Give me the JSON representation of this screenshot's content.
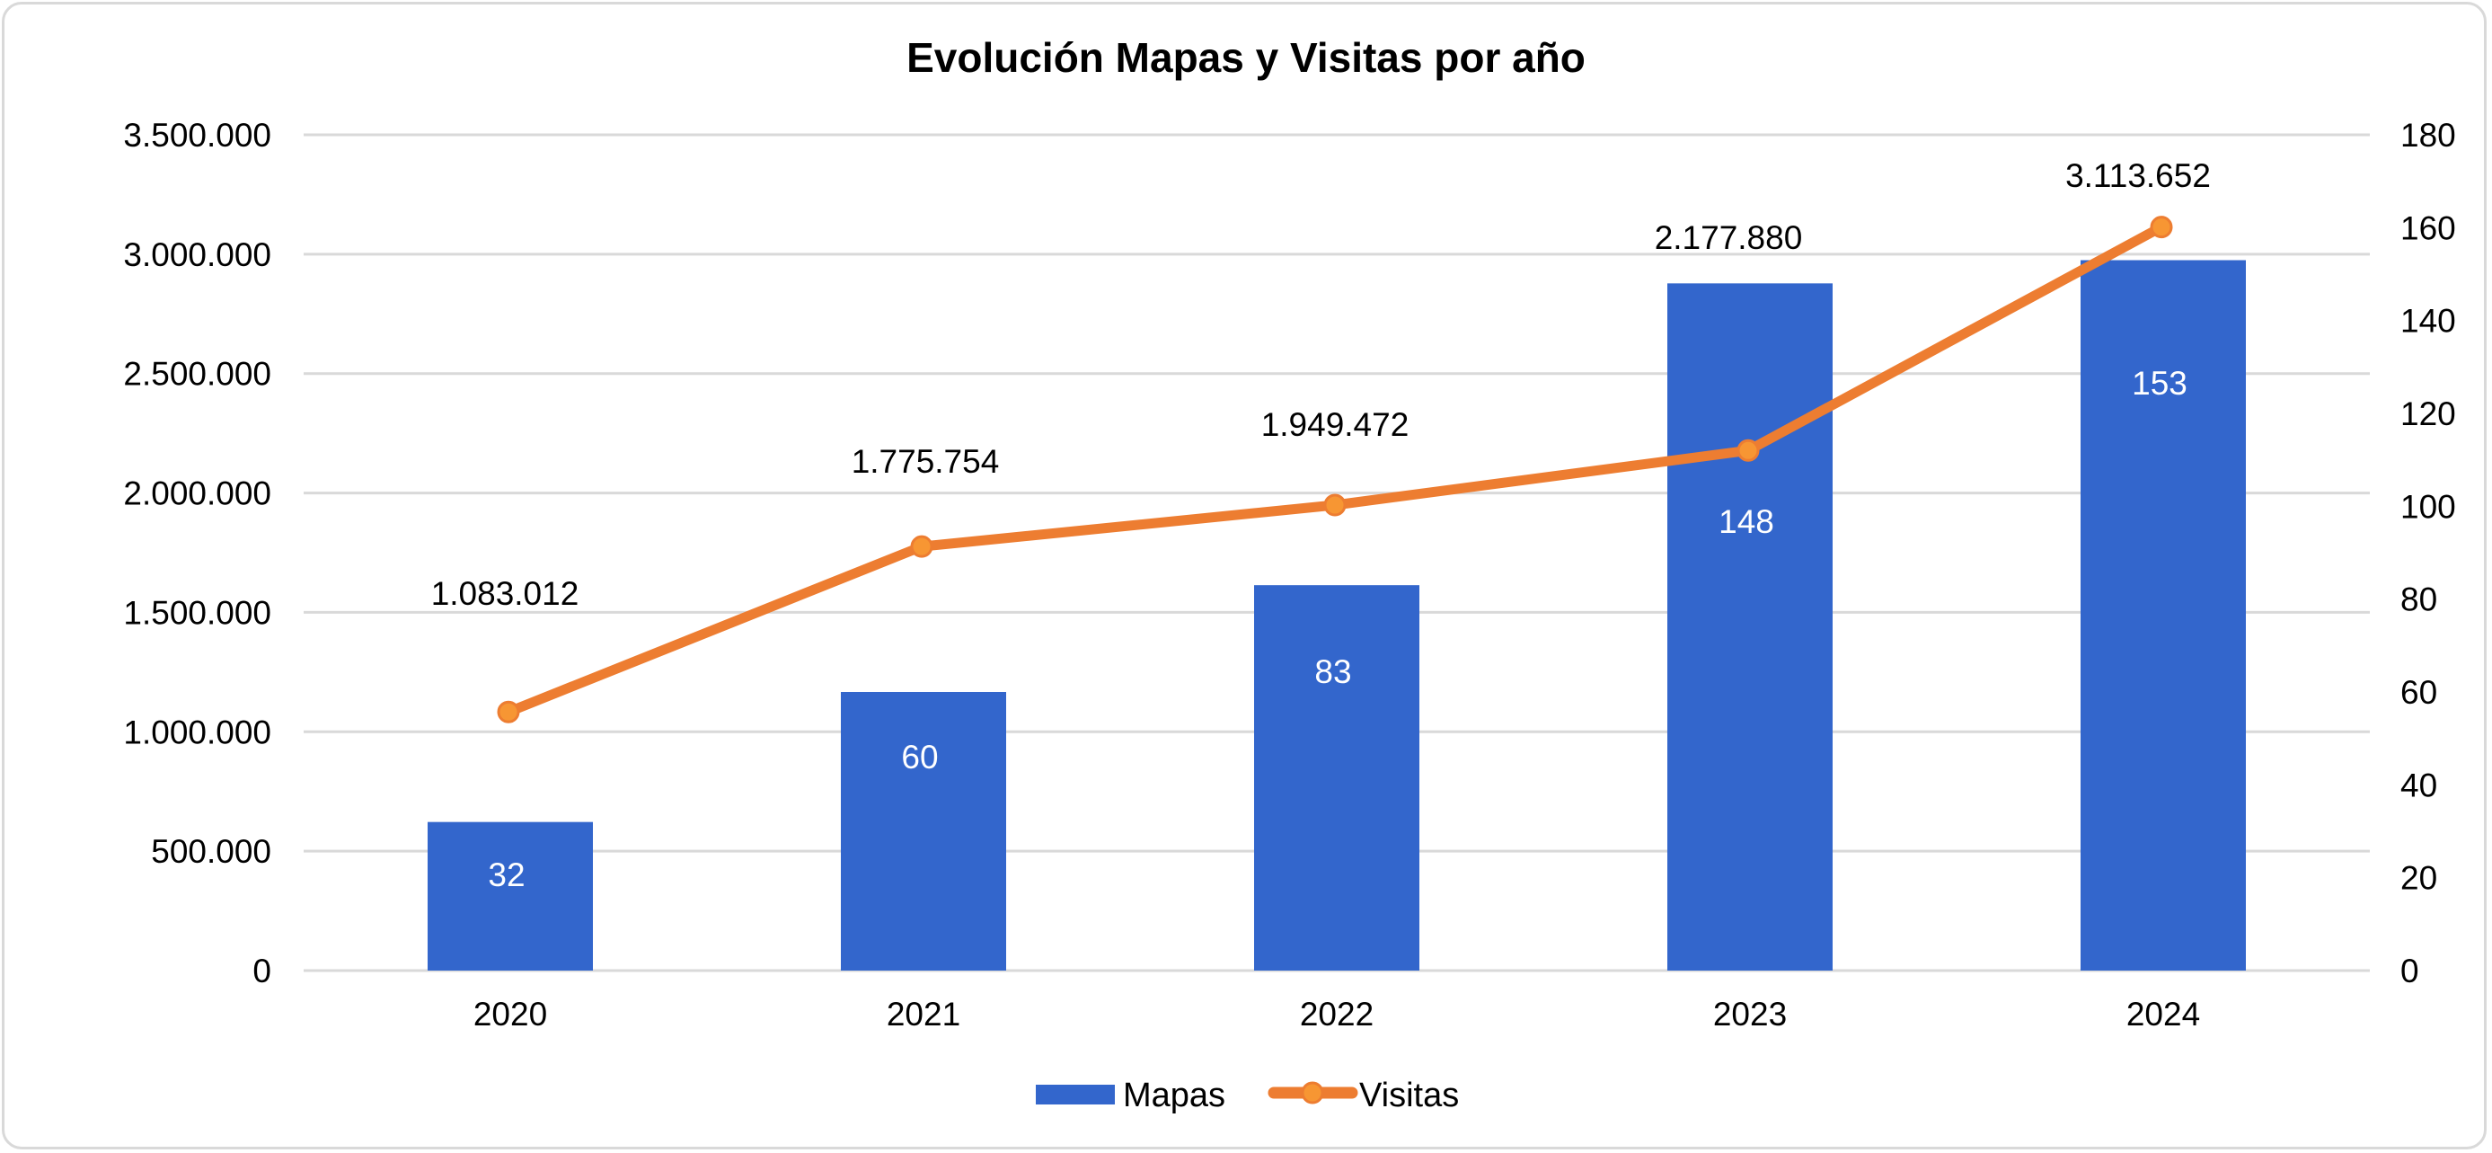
{
  "chart_data": {
    "type": "bar",
    "title": "Evolución Mapas y Visitas por año",
    "categories": [
      "2020",
      "2021",
      "2022",
      "2023",
      "2024"
    ],
    "series": [
      {
        "name": "Mapas",
        "type": "bar",
        "axis": "right",
        "values": [
          32,
          60,
          83,
          148,
          153
        ],
        "labels": [
          "32",
          "60",
          "83",
          "148",
          "153"
        ],
        "color": "#3366cc"
      },
      {
        "name": "Visitas",
        "type": "line",
        "axis": "left",
        "values": [
          1083012,
          1775754,
          1949472,
          2177880,
          3113652
        ],
        "labels": [
          "1.083.012",
          "1.775.754",
          "1.949.472",
          "2.177.880",
          "3.113.652"
        ],
        "color": "#ed7d31",
        "marker_color": "#f79633"
      }
    ],
    "left_axis": {
      "ylim": [
        0,
        3500000
      ],
      "ticks": [
        0,
        500000,
        1000000,
        1500000,
        2000000,
        2500000,
        3000000,
        3500000
      ],
      "tick_labels": [
        "0",
        "500.000",
        "1.000.000",
        "1.500.000",
        "2.000.000",
        "2.500.000",
        "3.000.000",
        "3.500.000"
      ]
    },
    "right_axis": {
      "ylim": [
        0,
        180
      ],
      "ticks": [
        0,
        20,
        40,
        60,
        80,
        100,
        120,
        140,
        160,
        180
      ],
      "tick_labels": [
        "0",
        "20",
        "40",
        "60",
        "80",
        "100",
        "120",
        "140",
        "160",
        "180"
      ]
    },
    "xlabel": "",
    "ylabel": "",
    "grid": true,
    "legend": {
      "position": "bottom",
      "entries": [
        "Mapas",
        "Visitas"
      ]
    }
  }
}
